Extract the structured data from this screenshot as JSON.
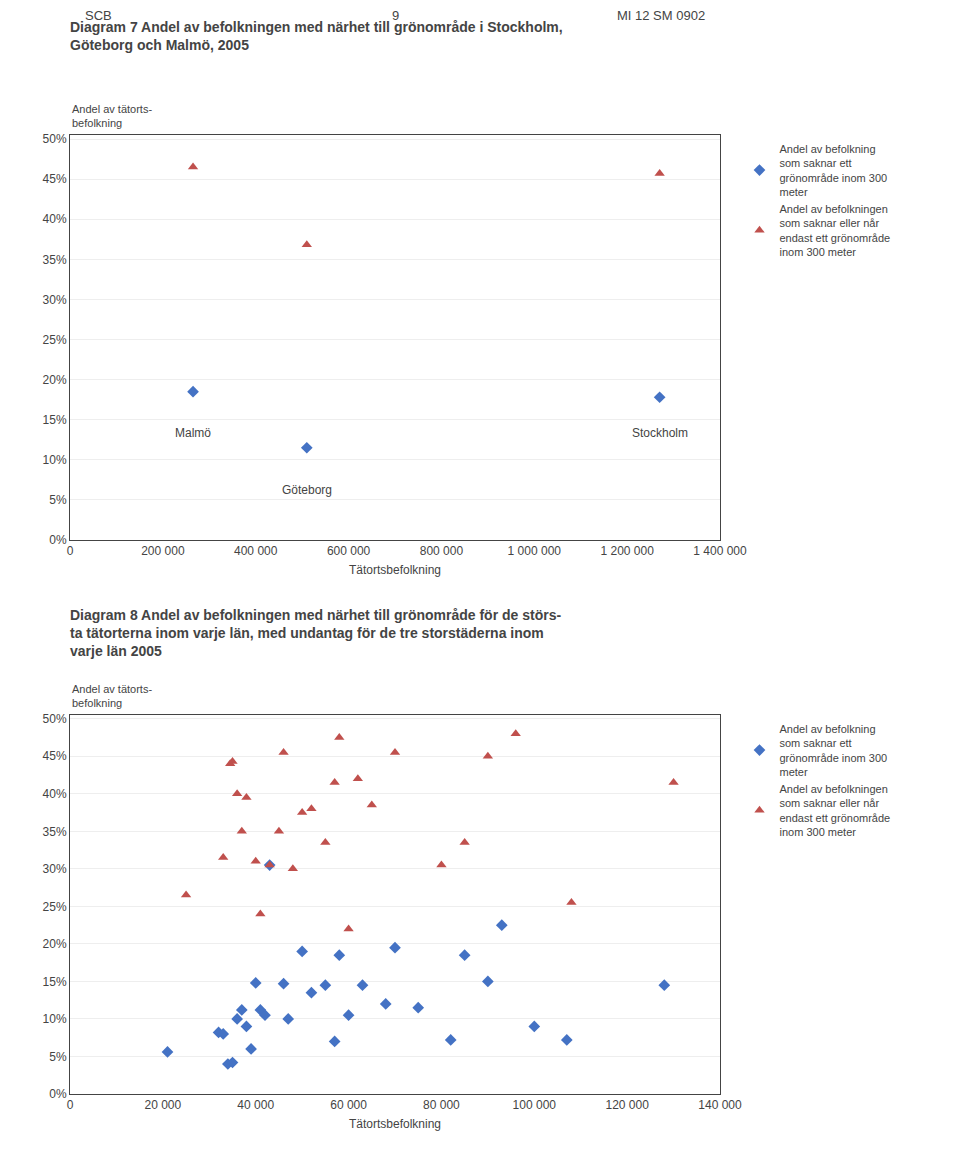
{
  "chart_data": [
    {
      "type": "scatter",
      "title": "Diagram 7 Andel av befolkningen med närhet till grönområde i Stockholm,\nGöteborg och Malmö, 2005",
      "xlabel": "Tätortsbefolkning",
      "ylabel": "Andel av tätorts-\nbefolkning",
      "series": [
        {
          "name": "Andel av befolkning\nsom saknar ett\ngrönområde inom 300\nmeter",
          "color": "#4472C4",
          "marker": "diamond",
          "x": [
            265000,
            510000,
            1270000
          ],
          "values": [
            0.185,
            0.115,
            0.178
          ]
        },
        {
          "name": "Andel av befolkningen\nsom saknar eller når\nendast ett grönområde\ninom 300 meter",
          "color": "#C0504D",
          "marker": "triangle",
          "x": [
            265000,
            510000,
            1270000
          ],
          "values": [
            0.465,
            0.368,
            0.457
          ]
        }
      ],
      "annotations": [
        {
          "text": "SCB"
        },
        {
          "text": "9"
        },
        {
          "text": "MI 12 SM 0902"
        },
        {
          "text": "Malmö",
          "x": 265000,
          "y": 0.145
        },
        {
          "text": "Göteborg",
          "x": 510000,
          "y": 0.073
        },
        {
          "text": "Stockholm",
          "x": 1270000,
          "y": 0.145
        }
      ],
      "xlim": [
        0,
        1400000
      ],
      "ylim": [
        0.0,
        0.505
      ],
      "xticks": [
        0,
        {
          "value": 200000,
          "label": "200 000"
        },
        {
          "value": 400000,
          "label": "400 000"
        },
        {
          "value": 600000,
          "label": "600 000"
        },
        {
          "value": 800000,
          "label": "800 000"
        },
        {
          "value": 1000000,
          "label": "1 000 000"
        },
        {
          "value": 1200000,
          "label": "1 200 000"
        },
        {
          "value": 1400000,
          "label": "1 400 000"
        }
      ],
      "yticks": [
        {
          "value": 0.0,
          "label": "0%"
        },
        {
          "value": 0.05,
          "label": "5%"
        },
        {
          "value": 0.1,
          "label": "10%"
        },
        {
          "value": 0.15,
          "label": "15%"
        },
        {
          "value": 0.2,
          "label": "20%"
        },
        {
          "value": 0.25,
          "label": "25%"
        },
        {
          "value": 0.3,
          "label": "30%"
        },
        {
          "value": 0.35,
          "label": "35%"
        },
        {
          "value": 0.4,
          "label": "40%"
        },
        {
          "value": 0.45,
          "label": "45%"
        },
        {
          "value": 0.5,
          "label": "50%"
        }
      ],
      "grid": "y",
      "legend": "right"
    },
    {
      "type": "scatter",
      "title": "Diagram 8 Andel av befolkningen med närhet till grönområde för de störs-\nta tätorterna inom varje län, med undantag för de tre storstäderna inom\nvarje län 2005",
      "xlabel": "Tätortsbefolkning",
      "ylabel": "Andel av tätorts-\nbefolkning",
      "series": [
        {
          "name": "Andel av befolkning\nsom saknar ett\ngrönområde inom 300\nmeter",
          "color": "#4472C4",
          "marker": "diamond",
          "x": [
            21000,
            32000,
            33000,
            34000,
            35000,
            36000,
            37000,
            38000,
            39000,
            40000,
            41000,
            42000,
            43000,
            46000,
            47000,
            50000,
            52000,
            55000,
            57000,
            58000,
            60000,
            63000,
            68000,
            70000,
            75000,
            82000,
            85000,
            90000,
            93000,
            100000,
            107000,
            128000
          ],
          "values": [
            0.056,
            0.082,
            0.08,
            0.04,
            0.042,
            0.1,
            0.112,
            0.09,
            0.06,
            0.148,
            0.112,
            0.105,
            0.305,
            0.147,
            0.1,
            0.19,
            0.135,
            0.145,
            0.07,
            0.185,
            0.105,
            0.145,
            0.12,
            0.195,
            0.115,
            0.072,
            0.185,
            0.15,
            0.225,
            0.09,
            0.072,
            0.145
          ]
        },
        {
          "name": "Andel av befolkningen\nsom saknar eller når\nendast ett grönområde\ninom 300 meter",
          "color": "#C0504D",
          "marker": "triangle",
          "x": [
            25000,
            33000,
            34500,
            35000,
            36000,
            37000,
            38000,
            40000,
            41000,
            43000,
            45000,
            46000,
            48000,
            50000,
            52000,
            55000,
            57000,
            58000,
            60000,
            62000,
            65000,
            70000,
            80000,
            85000,
            90000,
            96000,
            108000,
            130000
          ],
          "values": [
            0.265,
            0.315,
            0.44,
            0.443,
            0.4,
            0.35,
            0.395,
            0.31,
            0.24,
            0.305,
            0.35,
            0.455,
            0.3,
            0.375,
            0.38,
            0.335,
            0.415,
            0.475,
            0.22,
            0.42,
            0.385,
            0.455,
            0.305,
            0.335,
            0.45,
            0.48,
            0.255,
            0.415
          ]
        }
      ],
      "xlim": [
        0,
        140000
      ],
      "ylim": [
        0.0,
        0.505
      ],
      "xticks": [
        0,
        {
          "value": 20000,
          "label": "20 000"
        },
        {
          "value": 40000,
          "label": "40 000"
        },
        {
          "value": 60000,
          "label": "60 000"
        },
        {
          "value": 80000,
          "label": "80 000"
        },
        {
          "value": 100000,
          "label": "100 000"
        },
        {
          "value": 120000,
          "label": "120 000"
        },
        {
          "value": 140000,
          "label": "140 000"
        }
      ],
      "yticks": [
        {
          "value": 0.0,
          "label": "0%"
        },
        {
          "value": 0.05,
          "label": "5%"
        },
        {
          "value": 0.1,
          "label": "10%"
        },
        {
          "value": 0.15,
          "label": "15%"
        },
        {
          "value": 0.2,
          "label": "20%"
        },
        {
          "value": 0.25,
          "label": "25%"
        },
        {
          "value": 0.3,
          "label": "30%"
        },
        {
          "value": 0.35,
          "label": "35%"
        },
        {
          "value": 0.4,
          "label": "40%"
        },
        {
          "value": 0.45,
          "label": "45%"
        },
        {
          "value": 0.5,
          "label": "50%"
        }
      ],
      "grid": "y",
      "legend": "right"
    }
  ]
}
